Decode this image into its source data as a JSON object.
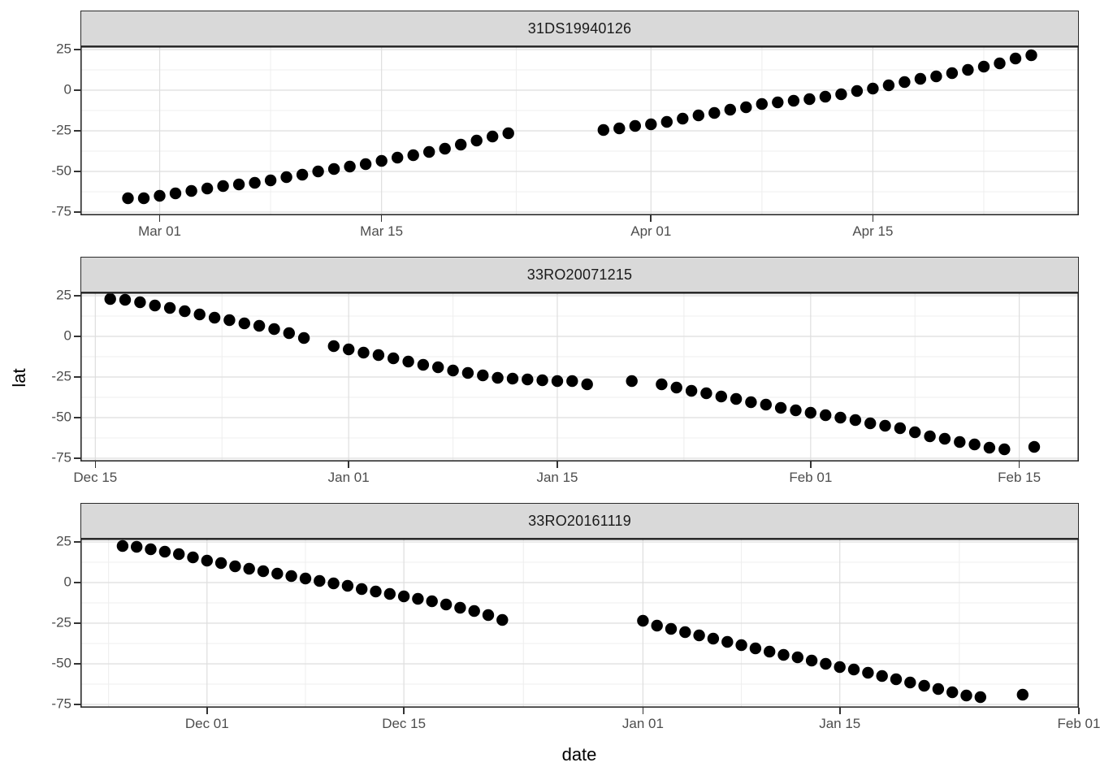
{
  "chart_data": {
    "type": "scatter",
    "x_label": "date",
    "y_label": "lat",
    "y_ticks": [
      25,
      0,
      -25,
      -50,
      -75
    ],
    "y_domain": [
      27,
      -77
    ],
    "point_radius": 7.2,
    "legend": "none",
    "grid": "major+minor",
    "colors": {
      "point": "#000000",
      "grid_major": "#DEDEDE",
      "grid_minor": "#EFEFEF",
      "border": "#2B2B2B",
      "strip_fill": "#D9D9D9",
      "strip_border": "#2B2B2B",
      "strip_text": "#1A1A1A",
      "axis_text": "#4D4D4D",
      "title_text": "#000000"
    },
    "facets": [
      {
        "title": "31DS19940126",
        "x_domain": [
          "1994-02-24",
          "1994-04-28"
        ],
        "x_ticks": [
          {
            "date": "1994-03-01",
            "label": "Mar 01"
          },
          {
            "date": "1994-03-15",
            "label": "Mar 15"
          },
          {
            "date": "1994-04-01",
            "label": "Apr 01"
          },
          {
            "date": "1994-04-15",
            "label": "Apr 15"
          }
        ],
        "points": [
          [
            "1994-02-27",
            -66.5
          ],
          [
            "1994-02-28",
            -66.5
          ],
          [
            "1994-03-01",
            -65
          ],
          [
            "1994-03-02",
            -63.5
          ],
          [
            "1994-03-03",
            -62
          ],
          [
            "1994-03-04",
            -60.5
          ],
          [
            "1994-03-05",
            -59
          ],
          [
            "1994-03-06",
            -58
          ],
          [
            "1994-03-07",
            -57
          ],
          [
            "1994-03-08",
            -55.5
          ],
          [
            "1994-03-09",
            -53.5
          ],
          [
            "1994-03-10",
            -52
          ],
          [
            "1994-03-11",
            -50
          ],
          [
            "1994-03-12",
            -48.5
          ],
          [
            "1994-03-13",
            -47
          ],
          [
            "1994-03-14",
            -45.5
          ],
          [
            "1994-03-15",
            -43.5
          ],
          [
            "1994-03-16",
            -41.5
          ],
          [
            "1994-03-17",
            -40
          ],
          [
            "1994-03-18",
            -38
          ],
          [
            "1994-03-19",
            -36
          ],
          [
            "1994-03-20",
            -33.5
          ],
          [
            "1994-03-21",
            -31
          ],
          [
            "1994-03-22",
            -28.5
          ],
          [
            "1994-03-23",
            -26.5
          ],
          [
            "1994-03-29",
            -24.5
          ],
          [
            "1994-03-30",
            -23.5
          ],
          [
            "1994-03-31",
            -22
          ],
          [
            "1994-04-01",
            -21
          ],
          [
            "1994-04-02",
            -19.5
          ],
          [
            "1994-04-03",
            -17.5
          ],
          [
            "1994-04-04",
            -15.5
          ],
          [
            "1994-04-05",
            -14
          ],
          [
            "1994-04-06",
            -12
          ],
          [
            "1994-04-07",
            -10.5
          ],
          [
            "1994-04-08",
            -8.5
          ],
          [
            "1994-04-09",
            -7.5
          ],
          [
            "1994-04-10",
            -6.5
          ],
          [
            "1994-04-11",
            -5.5
          ],
          [
            "1994-04-12",
            -4
          ],
          [
            "1994-04-13",
            -2.5
          ],
          [
            "1994-04-14",
            -0.5
          ],
          [
            "1994-04-15",
            1
          ],
          [
            "1994-04-16",
            3
          ],
          [
            "1994-04-17",
            5
          ],
          [
            "1994-04-18",
            7
          ],
          [
            "1994-04-19",
            8.5
          ],
          [
            "1994-04-20",
            10.5
          ],
          [
            "1994-04-21",
            12.5
          ],
          [
            "1994-04-22",
            14.5
          ],
          [
            "1994-04-23",
            16.5
          ],
          [
            "1994-04-24",
            19.5
          ],
          [
            "1994-04-25",
            21.5
          ]
        ]
      },
      {
        "title": "33RO20071215",
        "x_domain": [
          "2007-12-14",
          "2008-02-19"
        ],
        "x_ticks": [
          {
            "date": "2007-12-15",
            "label": "Dec 15"
          },
          {
            "date": "2008-01-01",
            "label": "Jan 01"
          },
          {
            "date": "2008-01-15",
            "label": "Jan 15"
          },
          {
            "date": "2008-02-01",
            "label": "Feb 01"
          },
          {
            "date": "2008-02-15",
            "label": "Feb 15"
          }
        ],
        "points": [
          [
            "2007-12-16",
            23
          ],
          [
            "2007-12-17",
            22.5
          ],
          [
            "2007-12-18",
            21
          ],
          [
            "2007-12-19",
            19
          ],
          [
            "2007-12-20",
            17.5
          ],
          [
            "2007-12-21",
            15.5
          ],
          [
            "2007-12-22",
            13.5
          ],
          [
            "2007-12-23",
            11.5
          ],
          [
            "2007-12-24",
            10
          ],
          [
            "2007-12-25",
            8
          ],
          [
            "2007-12-26",
            6.5
          ],
          [
            "2007-12-27",
            4.5
          ],
          [
            "2007-12-28",
            2
          ],
          [
            "2007-12-29",
            -1
          ],
          [
            "2007-12-31",
            -6
          ],
          [
            "2008-01-01",
            -8
          ],
          [
            "2008-01-02",
            -10
          ],
          [
            "2008-01-03",
            -11.5
          ],
          [
            "2008-01-04",
            -13.5
          ],
          [
            "2008-01-05",
            -15.5
          ],
          [
            "2008-01-06",
            -17.5
          ],
          [
            "2008-01-07",
            -19
          ],
          [
            "2008-01-08",
            -21
          ],
          [
            "2008-01-09",
            -22.5
          ],
          [
            "2008-01-10",
            -24
          ],
          [
            "2008-01-11",
            -25.5
          ],
          [
            "2008-01-12",
            -26
          ],
          [
            "2008-01-13",
            -26.5
          ],
          [
            "2008-01-14",
            -27
          ],
          [
            "2008-01-15",
            -27.5
          ],
          [
            "2008-01-16",
            -27.5
          ],
          [
            "2008-01-17",
            -29.5
          ],
          [
            "2008-01-20",
            -27.5
          ],
          [
            "2008-01-22",
            -29.5
          ],
          [
            "2008-01-23",
            -31.5
          ],
          [
            "2008-01-24",
            -33.5
          ],
          [
            "2008-01-25",
            -35
          ],
          [
            "2008-01-26",
            -37
          ],
          [
            "2008-01-27",
            -38.5
          ],
          [
            "2008-01-28",
            -40.5
          ],
          [
            "2008-01-29",
            -42
          ],
          [
            "2008-01-30",
            -44
          ],
          [
            "2008-01-31",
            -45.5
          ],
          [
            "2008-02-01",
            -47
          ],
          [
            "2008-02-02",
            -48.5
          ],
          [
            "2008-02-03",
            -50
          ],
          [
            "2008-02-04",
            -51.5
          ],
          [
            "2008-02-05",
            -53.5
          ],
          [
            "2008-02-06",
            -55
          ],
          [
            "2008-02-07",
            -56.5
          ],
          [
            "2008-02-08",
            -59
          ],
          [
            "2008-02-09",
            -61.5
          ],
          [
            "2008-02-10",
            -63
          ],
          [
            "2008-02-11",
            -65
          ],
          [
            "2008-02-12",
            -66.5
          ],
          [
            "2008-02-13",
            -68.5
          ],
          [
            "2008-02-14",
            -69.5
          ],
          [
            "2008-02-16",
            -68
          ]
        ]
      },
      {
        "title": "33RO20161119",
        "x_domain": [
          "2016-11-22",
          "2017-02-01"
        ],
        "x_ticks": [
          {
            "date": "2016-12-01",
            "label": "Dec 01"
          },
          {
            "date": "2016-12-15",
            "label": "Dec 15"
          },
          {
            "date": "2017-01-01",
            "label": "Jan 01"
          },
          {
            "date": "2017-01-15",
            "label": "Jan 15"
          },
          {
            "date": "2017-02-01",
            "label": "Feb 01"
          }
        ],
        "points": [
          [
            "2016-11-25",
            22.5
          ],
          [
            "2016-11-26",
            22
          ],
          [
            "2016-11-27",
            20.5
          ],
          [
            "2016-11-28",
            19
          ],
          [
            "2016-11-29",
            17.5
          ],
          [
            "2016-11-30",
            15.5
          ],
          [
            "2016-12-01",
            13.5
          ],
          [
            "2016-12-02",
            12
          ],
          [
            "2016-12-03",
            10
          ],
          [
            "2016-12-04",
            8.5
          ],
          [
            "2016-12-05",
            7
          ],
          [
            "2016-12-06",
            5.5
          ],
          [
            "2016-12-07",
            4
          ],
          [
            "2016-12-08",
            2.5
          ],
          [
            "2016-12-09",
            1
          ],
          [
            "2016-12-10",
            -0.5
          ],
          [
            "2016-12-11",
            -2
          ],
          [
            "2016-12-12",
            -4
          ],
          [
            "2016-12-13",
            -5.5
          ],
          [
            "2016-12-14",
            -7
          ],
          [
            "2016-12-15",
            -8.5
          ],
          [
            "2016-12-16",
            -10
          ],
          [
            "2016-12-17",
            -11.5
          ],
          [
            "2016-12-18",
            -13.5
          ],
          [
            "2016-12-19",
            -15.5
          ],
          [
            "2016-12-20",
            -17.5
          ],
          [
            "2016-12-21",
            -20
          ],
          [
            "2016-12-22",
            -23
          ],
          [
            "2017-01-01",
            -23.5
          ],
          [
            "2017-01-02",
            -26.5
          ],
          [
            "2017-01-03",
            -28.5
          ],
          [
            "2017-01-04",
            -30.5
          ],
          [
            "2017-01-05",
            -32.5
          ],
          [
            "2017-01-06",
            -34.5
          ],
          [
            "2017-01-07",
            -36.5
          ],
          [
            "2017-01-08",
            -38.5
          ],
          [
            "2017-01-09",
            -40.5
          ],
          [
            "2017-01-10",
            -42.5
          ],
          [
            "2017-01-11",
            -44.5
          ],
          [
            "2017-01-12",
            -46
          ],
          [
            "2017-01-13",
            -48
          ],
          [
            "2017-01-14",
            -50
          ],
          [
            "2017-01-15",
            -52
          ],
          [
            "2017-01-16",
            -53.5
          ],
          [
            "2017-01-17",
            -55.5
          ],
          [
            "2017-01-18",
            -57.5
          ],
          [
            "2017-01-19",
            -59.5
          ],
          [
            "2017-01-20",
            -61.5
          ],
          [
            "2017-01-21",
            -63.5
          ],
          [
            "2017-01-22",
            -65.5
          ],
          [
            "2017-01-23",
            -67.5
          ],
          [
            "2017-01-24",
            -69.5
          ],
          [
            "2017-01-25",
            -70.5
          ],
          [
            "2017-01-28",
            -69
          ]
        ]
      }
    ]
  }
}
